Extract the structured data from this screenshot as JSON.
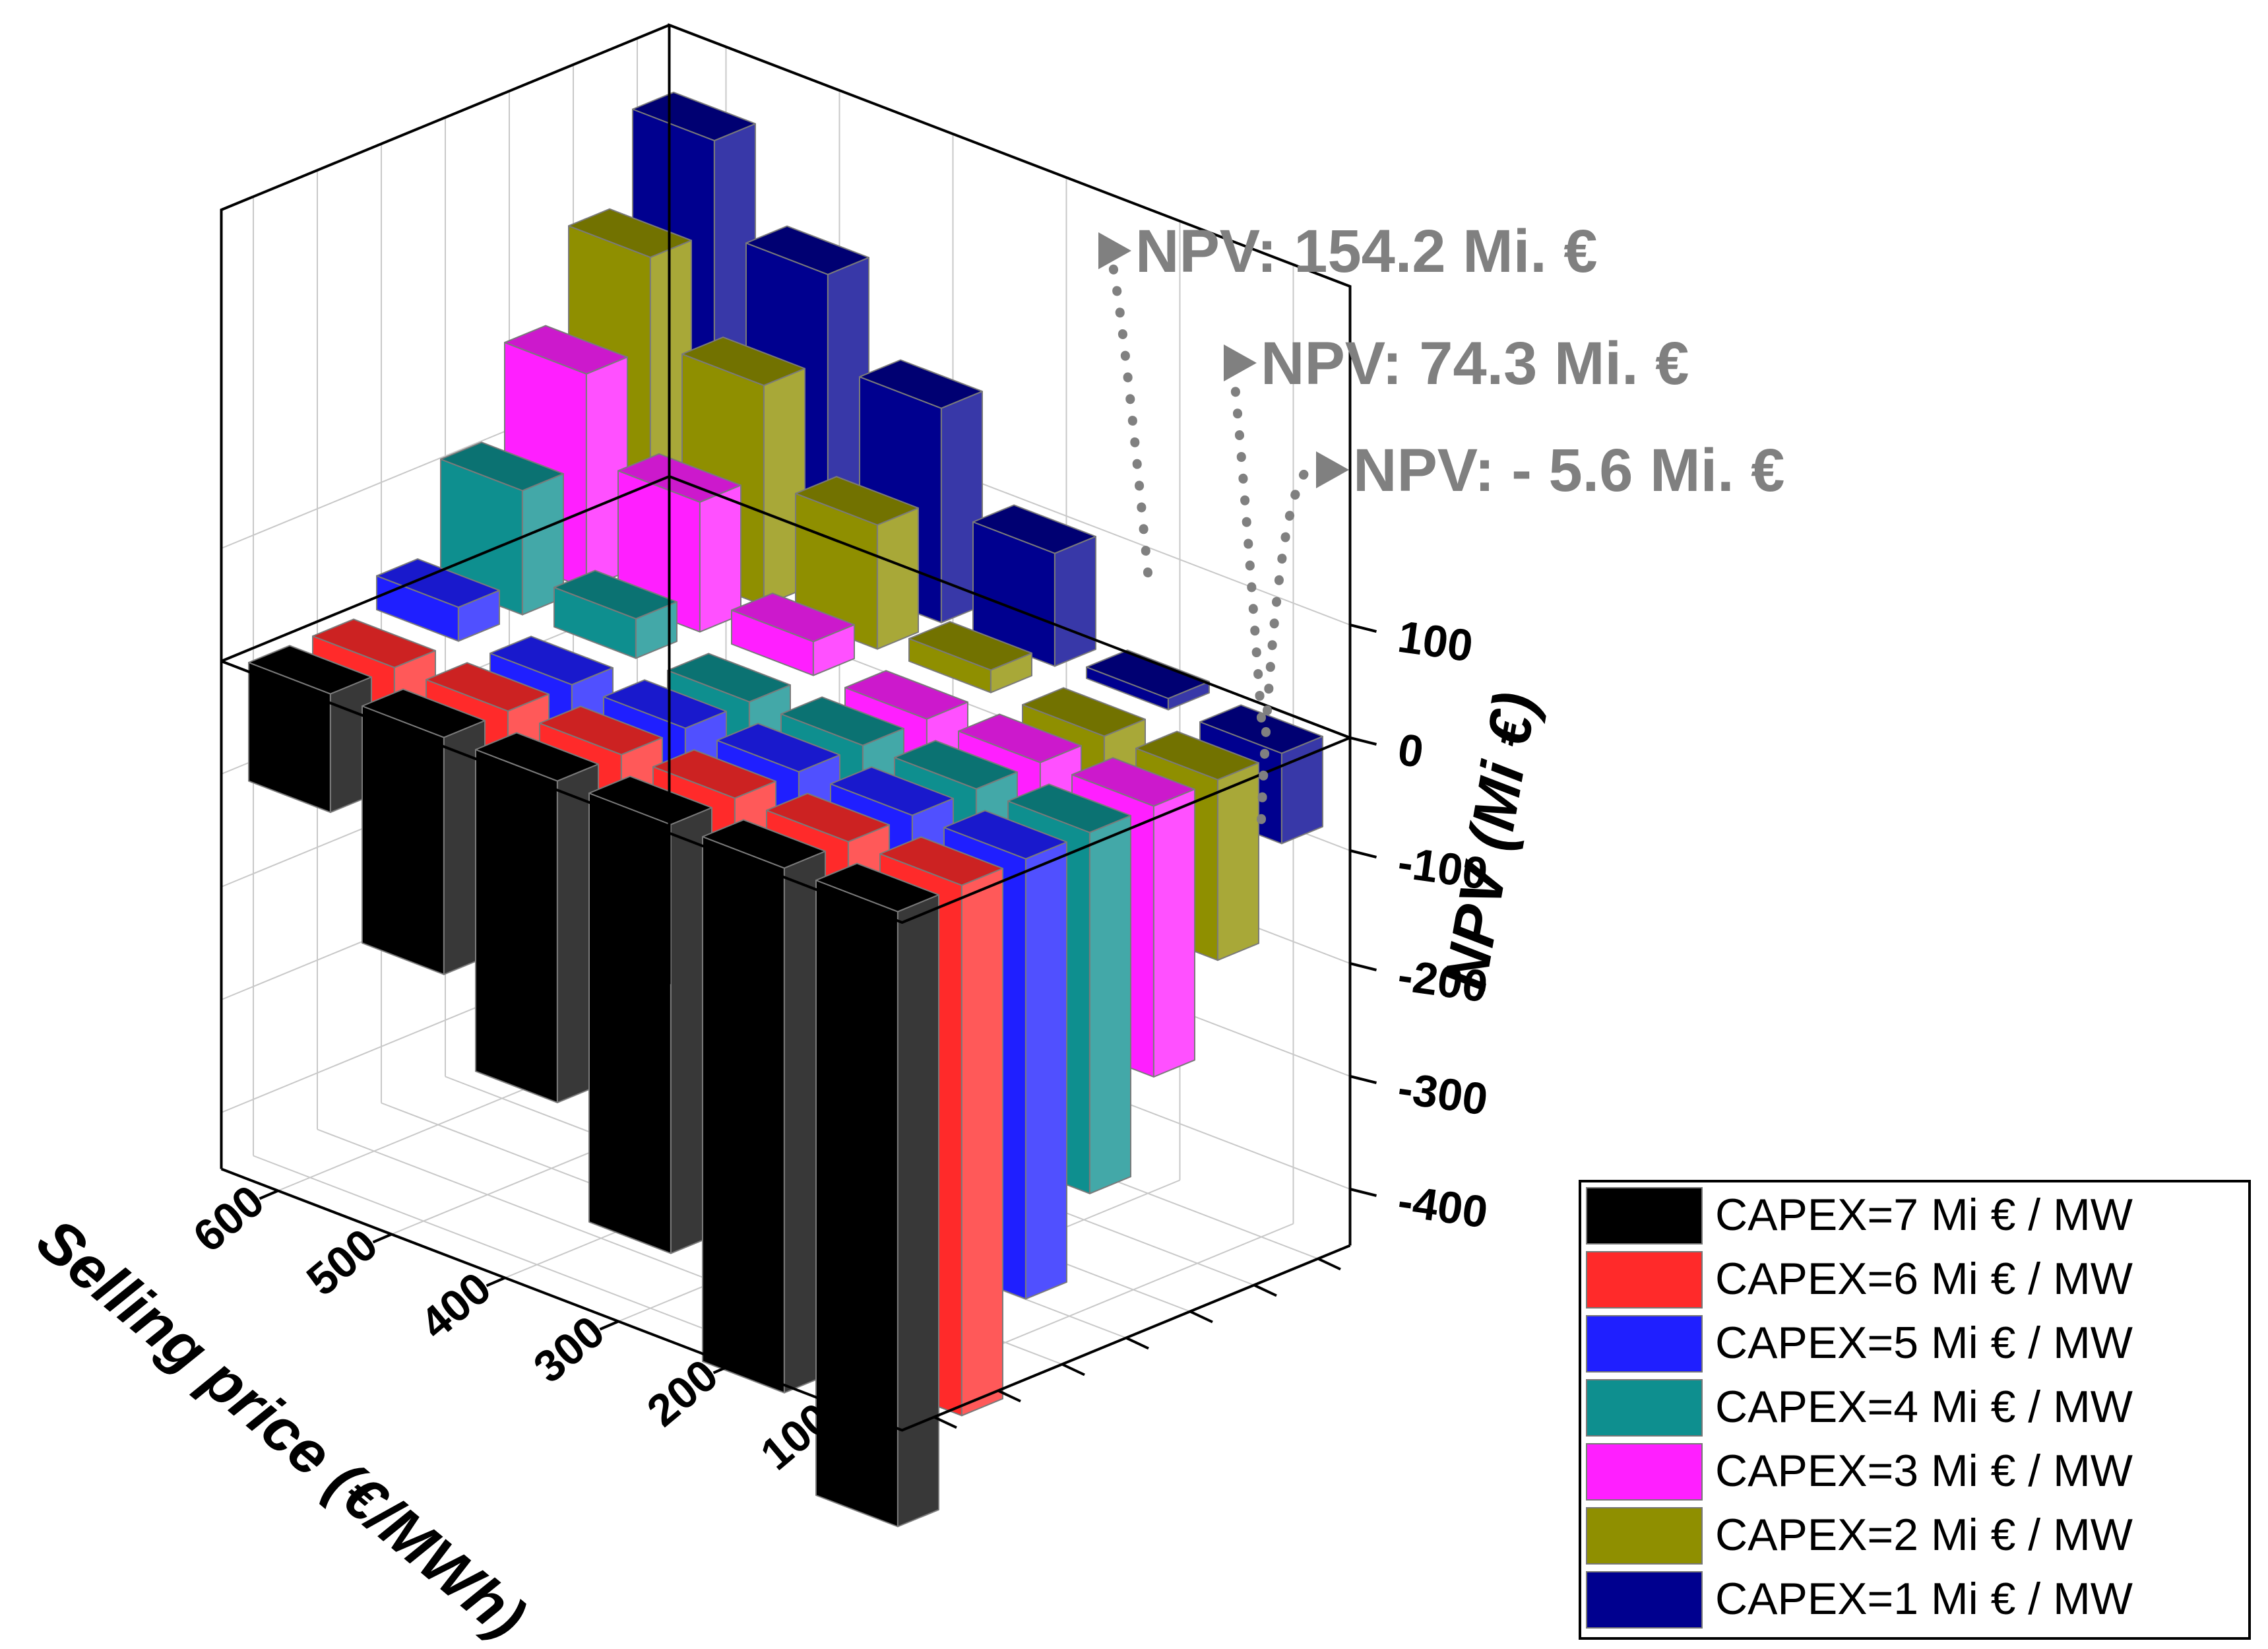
{
  "chart_data": {
    "type": "bar",
    "variant": "3d-bar",
    "x_axis": {
      "title": "Selling price (€/MWh)",
      "tick_labels": [
        "600",
        "500",
        "400",
        "300",
        "200",
        "100"
      ]
    },
    "z_axis": {
      "title": "NPV (Mi €)",
      "tick_labels": [
        "100",
        "0",
        "-100",
        "-200",
        "-300",
        "-400"
      ],
      "ticks": [
        100,
        0,
        -100,
        -200,
        -300,
        -400
      ],
      "range": [
        -450,
        400
      ]
    },
    "grid": true,
    "legend_position": "bottom-right",
    "series": [
      {
        "name": "CAPEX=7 Mi € / MW",
        "color": "#000000",
        "values": [
          -105,
          -210,
          -285,
          -380,
          -465,
          -545
        ]
      },
      {
        "name": "CAPEX=6 Mi € / MW",
        "color": "#ff2a2a",
        "values": [
          -40,
          -120,
          -210,
          -300,
          -390,
          -470
        ]
      },
      {
        "name": "CAPEX=5 Mi € / MW",
        "color": "#1f1fff",
        "values": [
          30,
          -45,
          -130,
          -220,
          -310,
          -390
        ]
      },
      {
        "name": "CAPEX=4 Mi € / MW",
        "color": "#0e8f8f",
        "values": [
          110,
          35,
          -50,
          -140,
          -230,
          -320
        ]
      },
      {
        "name": "CAPEX=3 Mi € / MW",
        "color": "#ff1fff",
        "values": [
          190,
          115,
          30,
          -60,
          -150,
          -240
        ]
      },
      {
        "name": "CAPEX=2 Mi € / MW",
        "color": "#8f8f00",
        "values": [
          270,
          195,
          110,
          20,
          -70,
          -160
        ]
      },
      {
        "name": "CAPEX=1 Mi € / MW",
        "color": "#00008f",
        "values": [
          350,
          270,
          190,
          100,
          10,
          -80
        ]
      }
    ],
    "annotations": [
      "NPV: 154.2 Mi. €",
      "NPV: 74.3 Mi. €",
      "NPV: - 5.6 Mi. €"
    ]
  }
}
